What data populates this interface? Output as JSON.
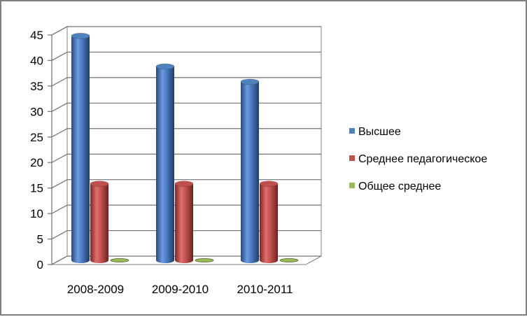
{
  "chart_data": {
    "type": "bar",
    "title": "",
    "xlabel": "",
    "ylabel": "",
    "categories": [
      "2008-2009",
      "2009-2010",
      "2010-2011"
    ],
    "ylim": [
      0,
      45
    ],
    "y_ticks": [
      "0",
      "5",
      "10",
      "15",
      "20",
      "25",
      "30",
      "35",
      "40",
      "45"
    ],
    "grid": true,
    "legend_position": "right",
    "series": [
      {
        "name": "Высшее",
        "values": [
          44,
          38,
          35
        ],
        "color": "#4F81BD"
      },
      {
        "name": "Среднее педагогическое",
        "values": [
          15,
          15,
          15
        ],
        "color": "#C0504D"
      },
      {
        "name": "Общее среднее",
        "values": [
          0,
          0,
          0
        ],
        "color": "#9BBB59"
      }
    ]
  }
}
